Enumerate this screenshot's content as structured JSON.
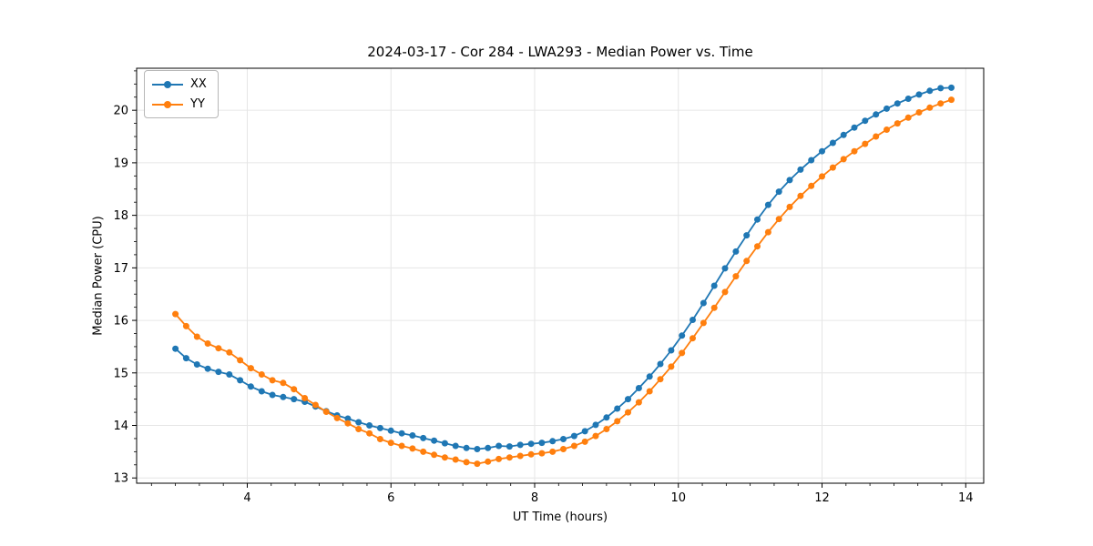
{
  "title": "2024-03-17 - Cor 284 - LWA293 - Median Power vs. Time",
  "xlabel": "UT Time (hours)",
  "ylabel": "Median Power (CPU)",
  "legend": {
    "position": "upper-left",
    "items": [
      {
        "label": "XX",
        "color": "#1f77b4"
      },
      {
        "label": "YY",
        "color": "#ff7f0e"
      }
    ]
  },
  "chart_data": {
    "type": "line",
    "title": "2024-03-17 - Cor 284 - LWA293 - Median Power vs. Time",
    "xlabel": "UT Time (hours)",
    "ylabel": "Median Power (CPU)",
    "xlim": [
      2.46,
      14.25
    ],
    "ylim": [
      12.9,
      20.8
    ],
    "xticks": [
      4,
      6,
      8,
      10,
      12,
      14
    ],
    "yticks": [
      13,
      14,
      15,
      16,
      17,
      18,
      19,
      20
    ],
    "x_minor_divisions_per_major": 6,
    "y_minor_divisions_per_major": 4,
    "grid": true,
    "grid_color": "#e6e6e6",
    "marker": "circle",
    "x": [
      3.0,
      3.15,
      3.3,
      3.45,
      3.6,
      3.75,
      3.9,
      4.05,
      4.2,
      4.35,
      4.5,
      4.65,
      4.8,
      4.95,
      5.1,
      5.25,
      5.4,
      5.55,
      5.7,
      5.85,
      6.0,
      6.15,
      6.3,
      6.45,
      6.6,
      6.75,
      6.9,
      7.05,
      7.2,
      7.35,
      7.5,
      7.65,
      7.8,
      7.95,
      8.1,
      8.25,
      8.4,
      8.55,
      8.7,
      8.85,
      9.0,
      9.15,
      9.3,
      9.45,
      9.6,
      9.75,
      9.9,
      10.05,
      10.2,
      10.35,
      10.5,
      10.65,
      10.8,
      10.95,
      11.1,
      11.25,
      11.4,
      11.55,
      11.7,
      11.85,
      12.0,
      12.15,
      12.3,
      12.45,
      12.6,
      12.75,
      12.9,
      13.05,
      13.2,
      13.35,
      13.5,
      13.65,
      13.8
    ],
    "series": [
      {
        "name": "XX",
        "color": "#1f77b4",
        "values": [
          15.46,
          15.28,
          15.16,
          15.08,
          15.02,
          14.97,
          14.86,
          14.74,
          14.65,
          14.58,
          14.54,
          14.5,
          14.45,
          14.36,
          14.27,
          14.19,
          14.13,
          14.06,
          14.0,
          13.95,
          13.9,
          13.85,
          13.81,
          13.76,
          13.71,
          13.66,
          13.61,
          13.57,
          13.55,
          13.57,
          13.61,
          13.6,
          13.63,
          13.65,
          13.67,
          13.7,
          13.74,
          13.8,
          13.89,
          14.01,
          14.15,
          14.32,
          14.5,
          14.71,
          14.93,
          15.17,
          15.43,
          15.71,
          16.01,
          16.33,
          16.66,
          16.99,
          17.31,
          17.62,
          17.92,
          18.2,
          18.45,
          18.67,
          18.87,
          19.05,
          19.22,
          19.38,
          19.53,
          19.67,
          19.8,
          19.92,
          20.03,
          20.13,
          20.22,
          20.3,
          20.37,
          20.42,
          20.43
        ]
      },
      {
        "name": "YY",
        "color": "#ff7f0e",
        "values": [
          16.12,
          15.89,
          15.69,
          15.56,
          15.47,
          15.39,
          15.24,
          15.09,
          14.97,
          14.86,
          14.81,
          14.69,
          14.52,
          14.39,
          14.26,
          14.14,
          14.04,
          13.93,
          13.85,
          13.74,
          13.67,
          13.61,
          13.56,
          13.5,
          13.44,
          13.39,
          13.35,
          13.3,
          13.27,
          13.31,
          13.36,
          13.39,
          13.42,
          13.45,
          13.47,
          13.5,
          13.55,
          13.61,
          13.69,
          13.8,
          13.93,
          14.08,
          14.25,
          14.44,
          14.65,
          14.88,
          15.12,
          15.38,
          15.66,
          15.95,
          16.24,
          16.54,
          16.84,
          17.13,
          17.41,
          17.68,
          17.93,
          18.16,
          18.37,
          18.56,
          18.74,
          18.91,
          19.07,
          19.22,
          19.36,
          19.5,
          19.63,
          19.75,
          19.86,
          19.96,
          20.05,
          20.13,
          20.2
        ]
      }
    ]
  }
}
